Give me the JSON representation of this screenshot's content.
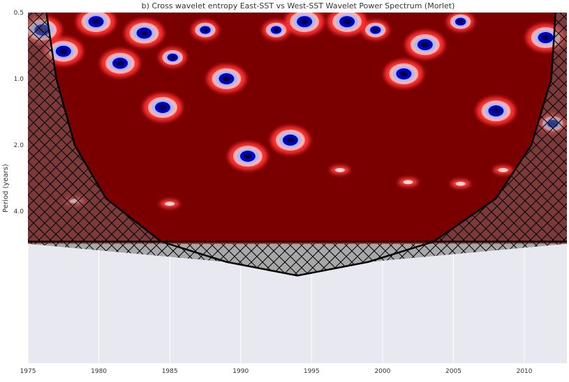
{
  "chart_data": {
    "type": "heatmap",
    "title": "b) Cross wavelet entropy East-SST vs West-SST Wavelet Power Spectrum (Morlet)",
    "xlabel": "",
    "ylabel": "Period (years)",
    "xlim": [
      1975,
      2013
    ],
    "x_ticks": [
      1975,
      1980,
      1985,
      1990,
      1995,
      2000,
      2005,
      2010
    ],
    "x_tick_labels": [
      "1975",
      "1980",
      "1985",
      "1990",
      "1995",
      "2000",
      "2005",
      "2010"
    ],
    "ylim_period": [
      0.5,
      8.0
    ],
    "y_scale": "log2",
    "y_ticks": [
      0.5,
      1.0,
      2.0,
      4.0
    ],
    "y_tick_labels": [
      "0.5",
      "1.0",
      "2.0",
      "4.0"
    ],
    "y_inverted": true,
    "colormap": "seismic (blue low, white mid, dark red high)",
    "background_color": "#e8e8f0",
    "grid": true,
    "colorbar": false,
    "legend": "none",
    "filled_area_bottom_period": 5.5,
    "cone_of_influence": [
      {
        "year": 1976.3,
        "period": 0.5
      },
      {
        "year": 1977.0,
        "period": 1.0
      },
      {
        "year": 1978.3,
        "period": 2.0
      },
      {
        "year": 1980.5,
        "period": 3.5
      },
      {
        "year": 1984.4,
        "period": 5.5
      },
      {
        "year": 1989.0,
        "period": 6.8
      },
      {
        "year": 1994.0,
        "period": 7.85
      },
      {
        "year": 1999.0,
        "period": 6.8
      },
      {
        "year": 2003.6,
        "period": 5.5
      },
      {
        "year": 2008.0,
        "period": 3.5
      },
      {
        "year": 2010.5,
        "period": 2.0
      },
      {
        "year": 2011.9,
        "period": 1.0
      },
      {
        "year": 2012.2,
        "period": 0.5
      }
    ],
    "power_blobs": [
      {
        "year": 1976.0,
        "period": 0.6,
        "level": -1
      },
      {
        "year": 1977.5,
        "period": 0.75,
        "level": -1
      },
      {
        "year": 1979.8,
        "period": 0.55,
        "level": -1
      },
      {
        "year": 1981.5,
        "period": 0.85,
        "level": -1
      },
      {
        "year": 1983.2,
        "period": 0.62,
        "level": -1
      },
      {
        "year": 1984.5,
        "period": 1.35,
        "level": -1
      },
      {
        "year": 1985.2,
        "period": 0.8,
        "level": -0.6
      },
      {
        "year": 1987.5,
        "period": 0.6,
        "level": -0.6
      },
      {
        "year": 1989.0,
        "period": 1.0,
        "level": -1
      },
      {
        "year": 1990.5,
        "period": 2.25,
        "level": -1
      },
      {
        "year": 1992.5,
        "period": 0.6,
        "level": -0.6
      },
      {
        "year": 1993.5,
        "period": 1.9,
        "level": -1
      },
      {
        "year": 1994.5,
        "period": 0.55,
        "level": -1
      },
      {
        "year": 1997.5,
        "period": 0.55,
        "level": -1
      },
      {
        "year": 1999.5,
        "period": 0.6,
        "level": -0.6
      },
      {
        "year": 2001.5,
        "period": 0.95,
        "level": -1
      },
      {
        "year": 2003.0,
        "period": 0.7,
        "level": -1
      },
      {
        "year": 2005.5,
        "period": 0.55,
        "level": -0.6
      },
      {
        "year": 2008.0,
        "period": 1.4,
        "level": -1
      },
      {
        "year": 2011.5,
        "period": 0.65,
        "level": -1
      },
      {
        "year": 2012.0,
        "period": 1.6,
        "level": -0.6
      },
      {
        "year": 1997.0,
        "period": 2.6,
        "level": 0.2
      },
      {
        "year": 2001.8,
        "period": 2.95,
        "level": 0.2
      },
      {
        "year": 2008.5,
        "period": 2.6,
        "level": 0.2
      },
      {
        "year": 1985.0,
        "period": 3.7,
        "level": 0.3
      },
      {
        "year": 1978.3,
        "period": 3.6,
        "level": 0.3
      },
      {
        "year": 2005.5,
        "period": 3.0,
        "level": 0.3
      }
    ]
  }
}
